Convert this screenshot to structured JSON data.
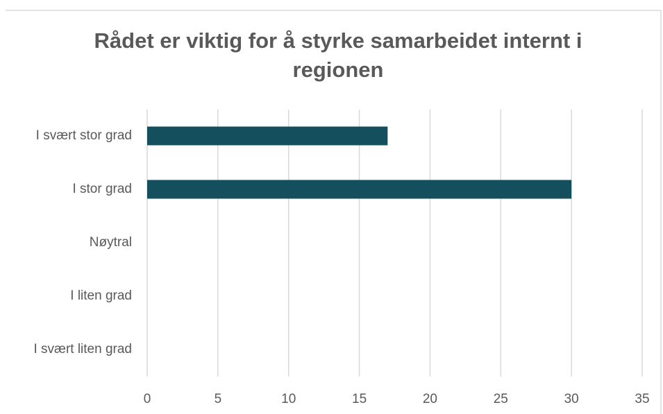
{
  "chart_data": {
    "type": "barh",
    "title": "Rådet er viktig for å styrke samarbeidet internt i regionen",
    "categories": [
      "I svært stor grad",
      "I stor grad",
      "Nøytral",
      "I liten grad",
      "I svært liten grad"
    ],
    "values": [
      17,
      30,
      0,
      0,
      0
    ],
    "color": "#134f5c",
    "xlim": [
      0,
      35
    ],
    "xticks": [
      0,
      5,
      10,
      15,
      20,
      25,
      30,
      35
    ],
    "grid": true
  }
}
